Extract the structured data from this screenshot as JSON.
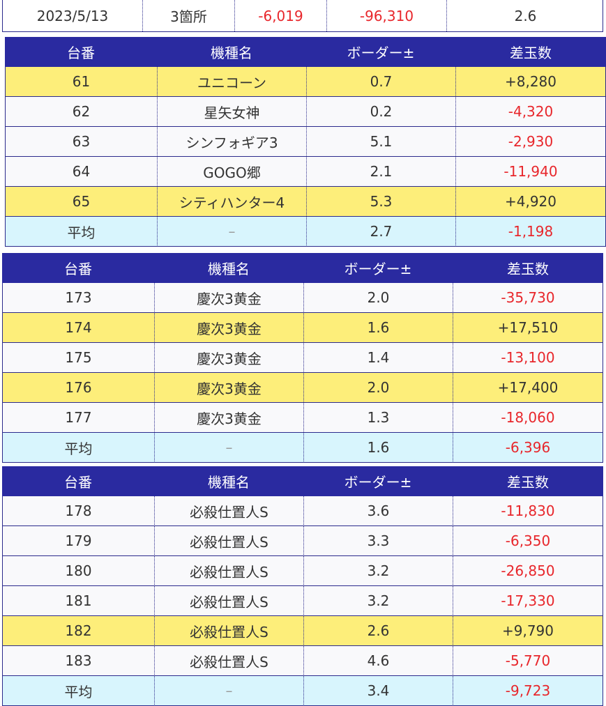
{
  "summary": {
    "date": "2023/5/13",
    "count": "3箇所",
    "diff_avg": "-6,019",
    "diff_total": "-96,310",
    "border": "2.6"
  },
  "headers": [
    "台番",
    "機種名",
    "ボーダー±",
    "差玉数"
  ],
  "tables": [
    {
      "rows": [
        {
          "no": "61",
          "name": "ユニコーン",
          "border": "0.7",
          "diff": "+8,280",
          "highlight": true
        },
        {
          "no": "62",
          "name": "星矢女神",
          "border": "0.2",
          "diff": "-4,320",
          "highlight": false
        },
        {
          "no": "63",
          "name": "シンフォギア3",
          "border": "5.1",
          "diff": "-2,930",
          "highlight": false
        },
        {
          "no": "64",
          "name": "GOGO郷",
          "border": "2.1",
          "diff": "-11,940",
          "highlight": false
        },
        {
          "no": "65",
          "name": "シティハンター4",
          "border": "5.3",
          "diff": "+4,920",
          "highlight": true
        }
      ],
      "average": {
        "label": "平均",
        "name": "–",
        "border": "2.7",
        "diff": "-1,198"
      }
    },
    {
      "rows": [
        {
          "no": "173",
          "name": "慶次3黄金",
          "border": "2.0",
          "diff": "-35,730",
          "highlight": false
        },
        {
          "no": "174",
          "name": "慶次3黄金",
          "border": "1.6",
          "diff": "+17,510",
          "highlight": true
        },
        {
          "no": "175",
          "name": "慶次3黄金",
          "border": "1.4",
          "diff": "-13,100",
          "highlight": false
        },
        {
          "no": "176",
          "name": "慶次3黄金",
          "border": "2.0",
          "diff": "+17,400",
          "highlight": true
        },
        {
          "no": "177",
          "name": "慶次3黄金",
          "border": "1.3",
          "diff": "-18,060",
          "highlight": false
        }
      ],
      "average": {
        "label": "平均",
        "name": "–",
        "border": "1.6",
        "diff": "-6,396"
      }
    },
    {
      "rows": [
        {
          "no": "178",
          "name": "必殺仕置人S",
          "border": "3.6",
          "diff": "-11,830",
          "highlight": false
        },
        {
          "no": "179",
          "name": "必殺仕置人S",
          "border": "3.3",
          "diff": "-6,350",
          "highlight": false
        },
        {
          "no": "180",
          "name": "必殺仕置人S",
          "border": "3.2",
          "diff": "-26,850",
          "highlight": false
        },
        {
          "no": "181",
          "name": "必殺仕置人S",
          "border": "3.2",
          "diff": "-17,330",
          "highlight": false
        },
        {
          "no": "182",
          "name": "必殺仕置人S",
          "border": "2.6",
          "diff": "+9,790",
          "highlight": true
        },
        {
          "no": "183",
          "name": "必殺仕置人S",
          "border": "4.6",
          "diff": "-5,770",
          "highlight": false
        }
      ],
      "average": {
        "label": "平均",
        "name": "–",
        "border": "3.4",
        "diff": "-9,723"
      }
    }
  ],
  "colors": {
    "header_bg": "#2a2aa0",
    "highlight": "#fdee7a",
    "average_bg": "#d8f5fd",
    "negative": "#e8262b"
  }
}
